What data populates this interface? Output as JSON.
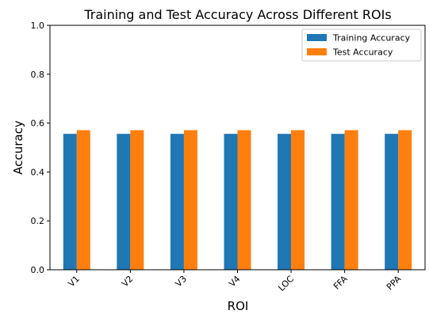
{
  "chart_data": {
    "type": "bar",
    "title": "Training and Test Accuracy Across Different ROIs",
    "xlabel": "ROI",
    "ylabel": "Accuracy",
    "categories": [
      "V1",
      "V2",
      "V3",
      "V4",
      "LOC",
      "FFA",
      "PPA"
    ],
    "series": [
      {
        "name": "Training Accuracy",
        "color": "#1f77b4",
        "values": [
          0.556,
          0.556,
          0.556,
          0.556,
          0.556,
          0.556,
          0.556
        ]
      },
      {
        "name": "Test Accuracy",
        "color": "#ff7f0e",
        "values": [
          0.571,
          0.571,
          0.571,
          0.571,
          0.571,
          0.571,
          0.571
        ]
      }
    ],
    "ylim": [
      0.0,
      1.0
    ],
    "yticks": [
      "0.0",
      "0.2",
      "0.4",
      "0.6",
      "0.8",
      "1.0"
    ],
    "grid": false,
    "legend_position": "top-right"
  }
}
